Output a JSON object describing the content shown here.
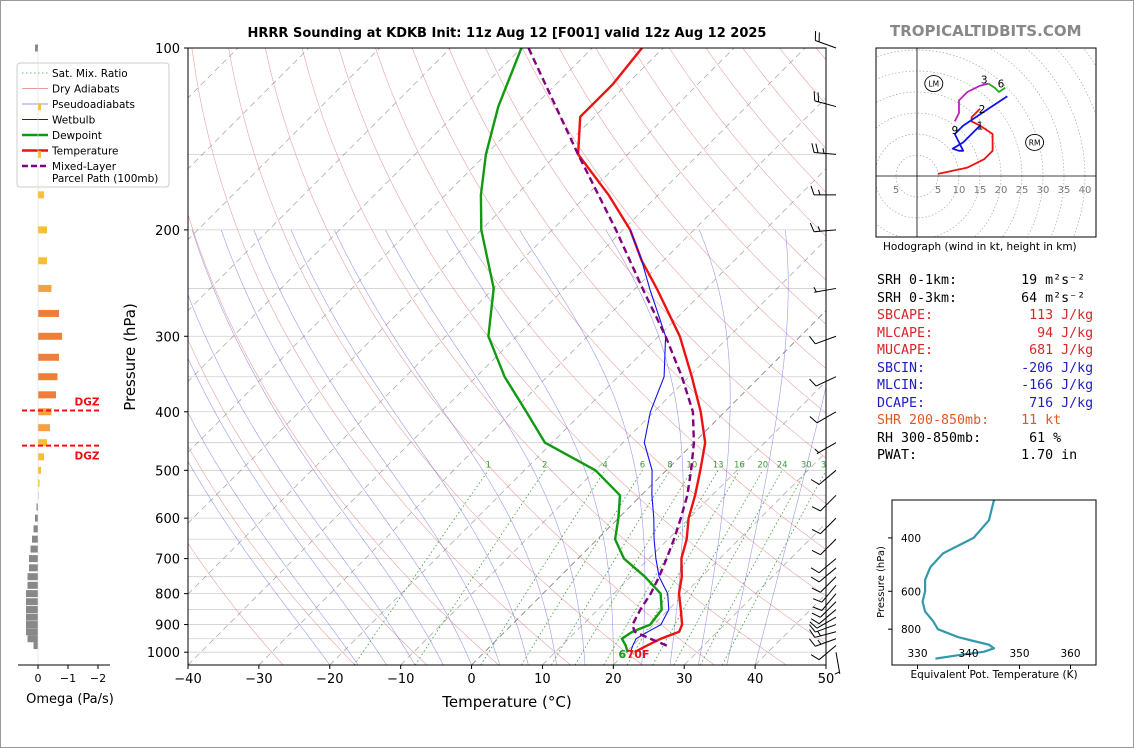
{
  "chart_data": [
    {
      "type": "line",
      "title": "HRRR Sounding at KDKB Init: 11z Aug 12 [F001] valid 12z Aug 12 2025",
      "xlabel": "Temperature (°C)",
      "ylabel": "Pressure (hPa)",
      "xlim": [
        -40,
        50
      ],
      "ylim": [
        1050,
        100
      ],
      "yscale": "log",
      "skew": true,
      "xticks": [
        "−40",
        "−30",
        "−20",
        "−10",
        "0",
        "10",
        "20",
        "30",
        "40",
        "50"
      ],
      "yticks": [
        "100",
        "200",
        "300",
        "400",
        "500",
        "600",
        "700",
        "800",
        "900",
        "1000"
      ],
      "grid": true,
      "mixing_ratio_labels": [
        "1",
        "2",
        "4",
        "6",
        "8",
        "10",
        "13",
        "16",
        "20",
        "24",
        "30",
        "36"
      ],
      "surface_temp_label": "70F",
      "surface_dewpoint_label": "6",
      "legend": {
        "placement": "top-left",
        "entries": [
          "Sat. Mix. Ratio",
          "Dry Adiabats",
          "Pseudoadiabats",
          "Wetbulb",
          "Dewpoint",
          "Temperature",
          "Mixed-Layer\nParcel Path (100mb)"
        ]
      },
      "series": [
        {
          "name": "Temperature",
          "color": "#ee1111",
          "points": [
            [
              1000,
              21.2
            ],
            [
              975,
              22
            ],
            [
              950,
              23
            ],
            [
              925,
              24.6
            ],
            [
              900,
              24
            ],
            [
              850,
              21.7
            ],
            [
              800,
              19.2
            ],
            [
              750,
              17.2
            ],
            [
              700,
              14.6
            ],
            [
              650,
              12.6
            ],
            [
              600,
              9.9
            ],
            [
              550,
              7.6
            ],
            [
              500,
              4.8
            ],
            [
              450,
              1.6
            ],
            [
              400,
              -3.4
            ],
            [
              350,
              -9.6
            ],
            [
              300,
              -17
            ],
            [
              250,
              -27
            ],
            [
              225,
              -33
            ],
            [
              200,
              -39
            ],
            [
              175,
              -47
            ],
            [
              150,
              -57
            ],
            [
              130,
              -62
            ],
            [
              115,
              -62
            ],
            [
              100,
              -63
            ]
          ]
        },
        {
          "name": "Dewpoint",
          "color": "#119911",
          "points": [
            [
              1000,
              20.2
            ],
            [
              975,
              19
            ],
            [
              950,
              17.5
            ],
            [
              925,
              18
            ],
            [
              900,
              19.5
            ],
            [
              850,
              19
            ],
            [
              800,
              16.6
            ],
            [
              750,
              12
            ],
            [
              700,
              6.5
            ],
            [
              650,
              2.5
            ],
            [
              600,
              0
            ],
            [
              550,
              -3
            ],
            [
              500,
              -10
            ],
            [
              450,
              -21
            ],
            [
              400,
              -28
            ],
            [
              350,
              -36
            ],
            [
              300,
              -44
            ],
            [
              250,
              -50
            ],
            [
              200,
              -60
            ],
            [
              175,
              -65
            ],
            [
              150,
              -70
            ],
            [
              125,
              -75
            ],
            [
              100,
              -80
            ]
          ]
        },
        {
          "name": "Wetbulb",
          "color": "#1111ee",
          "points": [
            [
              1000,
              20.6
            ],
            [
              975,
              20
            ],
            [
              950,
              19.5
            ],
            [
              925,
              20.2
            ],
            [
              900,
              21
            ],
            [
              850,
              20
            ],
            [
              800,
              17.6
            ],
            [
              750,
              14
            ],
            [
              700,
              11
            ],
            [
              650,
              8
            ],
            [
              600,
              5
            ],
            [
              550,
              1.5
            ],
            [
              500,
              -2
            ],
            [
              450,
              -7
            ],
            [
              400,
              -10.5
            ],
            [
              350,
              -13.5
            ],
            [
              300,
              -19
            ],
            [
              250,
              -28
            ],
            [
              225,
              -33
            ],
            [
              200,
              -39
            ]
          ]
        },
        {
          "name": "Mixed-Layer\nParcel Path (100mb)",
          "color": "#800080",
          "points": [
            [
              975,
              24.8
            ],
            [
              950,
              21.5
            ],
            [
              925,
              18.3
            ],
            [
              900,
              17
            ],
            [
              850,
              16
            ],
            [
              800,
              15.2
            ],
            [
              750,
              14
            ],
            [
              700,
              12.5
            ],
            [
              650,
              10.8
            ],
            [
              600,
              8.8
            ],
            [
              550,
              6.5
            ],
            [
              500,
              3.5
            ],
            [
              450,
              0
            ],
            [
              400,
              -4.5
            ],
            [
              350,
              -11
            ],
            [
              300,
              -19
            ],
            [
              250,
              -29
            ],
            [
              200,
              -41
            ],
            [
              150,
              -57
            ],
            [
              100,
              -79
            ]
          ]
        }
      ],
      "wind_barbs": [
        {
          "p": 1000,
          "speed_kt": 5,
          "dir_deg": 170
        },
        {
          "p": 975,
          "speed_kt": 10,
          "dir_deg": 230
        },
        {
          "p": 950,
          "speed_kt": 15,
          "dir_deg": 250
        },
        {
          "p": 925,
          "speed_kt": 15,
          "dir_deg": 255
        },
        {
          "p": 900,
          "speed_kt": 10,
          "dir_deg": 250
        },
        {
          "p": 875,
          "speed_kt": 10,
          "dir_deg": 240
        },
        {
          "p": 850,
          "speed_kt": 10,
          "dir_deg": 230
        },
        {
          "p": 825,
          "speed_kt": 10,
          "dir_deg": 225
        },
        {
          "p": 800,
          "speed_kt": 10,
          "dir_deg": 220
        },
        {
          "p": 775,
          "speed_kt": 10,
          "dir_deg": 220
        },
        {
          "p": 750,
          "speed_kt": 10,
          "dir_deg": 225
        },
        {
          "p": 725,
          "speed_kt": 10,
          "dir_deg": 230
        },
        {
          "p": 700,
          "speed_kt": 10,
          "dir_deg": 230
        },
        {
          "p": 650,
          "speed_kt": 10,
          "dir_deg": 225
        },
        {
          "p": 600,
          "speed_kt": 10,
          "dir_deg": 225
        },
        {
          "p": 550,
          "speed_kt": 10,
          "dir_deg": 225
        },
        {
          "p": 500,
          "speed_kt": 10,
          "dir_deg": 230
        },
        {
          "p": 450,
          "speed_kt": 5,
          "dir_deg": 240
        },
        {
          "p": 400,
          "speed_kt": 10,
          "dir_deg": 240
        },
        {
          "p": 350,
          "speed_kt": 10,
          "dir_deg": 245
        },
        {
          "p": 300,
          "speed_kt": 10,
          "dir_deg": 250
        },
        {
          "p": 250,
          "speed_kt": 5,
          "dir_deg": 260
        },
        {
          "p": 200,
          "speed_kt": 15,
          "dir_deg": 265
        },
        {
          "p": 175,
          "speed_kt": 15,
          "dir_deg": 270
        },
        {
          "p": 150,
          "speed_kt": 25,
          "dir_deg": 275
        },
        {
          "p": 125,
          "speed_kt": 20,
          "dir_deg": 285
        },
        {
          "p": 100,
          "speed_kt": 20,
          "dir_deg": 290
        }
      ]
    },
    {
      "type": "bar",
      "name": "omega",
      "xlabel": "Omega (Pa/s)",
      "xticks": [
        "0",
        "−1",
        "−2"
      ],
      "xlim": [
        0.4,
        -2.4
      ],
      "dgz_label": "DGZ",
      "dgz_bounds_hpa": [
        398,
        455
      ],
      "bars": [
        {
          "p": 100,
          "omega": 0.1
        },
        {
          "p": 125,
          "omega": -0.1
        },
        {
          "p": 150,
          "omega": -0.1
        },
        {
          "p": 175,
          "omega": -0.2
        },
        {
          "p": 200,
          "omega": -0.3
        },
        {
          "p": 225,
          "omega": -0.3
        },
        {
          "p": 250,
          "omega": -0.45
        },
        {
          "p": 275,
          "omega": -0.7
        },
        {
          "p": 300,
          "omega": -0.8
        },
        {
          "p": 325,
          "omega": -0.7
        },
        {
          "p": 350,
          "omega": -0.65
        },
        {
          "p": 375,
          "omega": -0.6
        },
        {
          "p": 400,
          "omega": -0.45
        },
        {
          "p": 425,
          "omega": -0.4
        },
        {
          "p": 450,
          "omega": -0.3
        },
        {
          "p": 475,
          "omega": -0.2
        },
        {
          "p": 500,
          "omega": -0.1
        },
        {
          "p": 525,
          "omega": -0.05
        },
        {
          "p": 550,
          "omega": 0
        },
        {
          "p": 575,
          "omega": 0.05
        },
        {
          "p": 600,
          "omega": 0.1
        },
        {
          "p": 625,
          "omega": 0.15
        },
        {
          "p": 650,
          "omega": 0.2
        },
        {
          "p": 675,
          "omega": 0.25
        },
        {
          "p": 700,
          "omega": 0.3
        },
        {
          "p": 725,
          "omega": 0.3
        },
        {
          "p": 750,
          "omega": 0.35
        },
        {
          "p": 775,
          "omega": 0.35
        },
        {
          "p": 800,
          "omega": 0.4
        },
        {
          "p": 825,
          "omega": 0.4
        },
        {
          "p": 850,
          "omega": 0.4
        },
        {
          "p": 875,
          "omega": 0.4
        },
        {
          "p": 900,
          "omega": 0.4
        },
        {
          "p": 925,
          "omega": 0.4
        },
        {
          "p": 950,
          "omega": 0.35
        },
        {
          "p": 975,
          "omega": 0.15
        }
      ]
    },
    {
      "type": "line",
      "name": "hodograph",
      "xlabel": "Hodograph (wind in kt, height in km)",
      "ring_labels": [
        "5",
        "5",
        "10",
        "15",
        "20",
        "25",
        "30",
        "35",
        "40"
      ],
      "height_labels": [
        {
          "label": "1",
          "u": 15,
          "v": 12
        },
        {
          "label": "2",
          "u": 15.5,
          "v": 16
        },
        {
          "label": "3",
          "u": 16,
          "v": 23
        },
        {
          "label": "6",
          "u": 20,
          "v": 22
        },
        {
          "label": "9",
          "u": 9,
          "v": 11
        }
      ],
      "markers": [
        {
          "label": "LM",
          "u": 4,
          "v": 22
        },
        {
          "label": "RM",
          "u": 28,
          "v": 8
        }
      ],
      "segments": [
        {
          "color": "#ee1111",
          "uv": [
            [
              5,
              0.5
            ],
            [
              12,
              2
            ],
            [
              16,
              4
            ],
            [
              18,
              6
            ],
            [
              18,
              10
            ],
            [
              15,
              12
            ],
            [
              13,
              13
            ],
            [
              13,
              14
            ],
            [
              15,
              16
            ]
          ]
        },
        {
          "color": "#1111ee",
          "uv": [
            [
              15,
              12
            ],
            [
              13,
              10
            ],
            [
              11,
              8
            ],
            [
              8.5,
              6.5
            ],
            [
              10,
              6
            ],
            [
              11,
              6
            ],
            [
              10,
              8
            ],
            [
              9,
              10
            ],
            [
              11,
              12
            ],
            [
              17,
              16
            ],
            [
              21.5,
              19
            ]
          ]
        },
        {
          "color": "#bb22bb",
          "uv": [
            [
              9,
              13
            ],
            [
              10,
              15
            ],
            [
              10,
              18
            ],
            [
              12,
              20
            ],
            [
              15,
              21.5
            ],
            [
              17,
              22
            ]
          ]
        },
        {
          "color": "#22aa22",
          "uv": [
            [
              17,
              22
            ],
            [
              18.5,
              21
            ],
            [
              19.5,
              20
            ],
            [
              21,
              21
            ]
          ]
        }
      ]
    },
    {
      "type": "line",
      "name": "theta-e",
      "xlabel": "Equivalent Pot. Temperature (K)",
      "ylabel": "Pressure (hPa)",
      "xlim": [
        325,
        365
      ],
      "ylim": [
        1050,
        300
      ],
      "xticks": [
        "330",
        "340",
        "350",
        "360"
      ],
      "yticks": [
        "400",
        "600",
        "800"
      ],
      "series": [
        {
          "color": "#3399aa",
          "points": [
            [
              1000,
              333.5
            ],
            [
              975,
              338
            ],
            [
              950,
              343
            ],
            [
              925,
              345
            ],
            [
              900,
              344
            ],
            [
              875,
              341
            ],
            [
              850,
              338
            ],
            [
              800,
              334
            ],
            [
              750,
              333
            ],
            [
              700,
              331.5
            ],
            [
              650,
              331
            ],
            [
              600,
              331.5
            ],
            [
              550,
              331.5
            ],
            [
              500,
              332.5
            ],
            [
              450,
              335
            ],
            [
              400,
              341
            ],
            [
              350,
              344
            ],
            [
              300,
              345
            ]
          ]
        }
      ]
    }
  ],
  "brand": "TROPICALTIDBITS.COM",
  "hodograph_caption": "Hodograph (wind in kt, height in km)",
  "stats": [
    {
      "label": "SRH 0-1km:",
      "value": "   19",
      "unit": " m²s⁻²",
      "color": "black"
    },
    {
      "label": "SRH 0-3km:",
      "value": "   64",
      "unit": " m²s⁻²",
      "color": "black"
    },
    {
      "label": "SBCAPE:",
      "value": "    113",
      "unit": " J/kg",
      "color": "red"
    },
    {
      "label": "MLCAPE:",
      "value": "     94",
      "unit": " J/kg",
      "color": "red"
    },
    {
      "label": "MUCAPE:",
      "value": "    681",
      "unit": " J/kg",
      "color": "red"
    },
    {
      "label": "SBCIN:",
      "value": "   -206",
      "unit": " J/kg",
      "color": "blue"
    },
    {
      "label": "MLCIN:",
      "value": "   -166",
      "unit": " J/kg",
      "color": "blue"
    },
    {
      "label": "DCAPE:",
      "value": "    716",
      "unit": " J/kg",
      "color": "blue"
    },
    {
      "label": "SHR 200-850mb:",
      "value": "   11",
      "unit": " kt",
      "color": "orange"
    },
    {
      "label": "RH 300-850mb:",
      "value": "    61",
      "unit": " %",
      "color": "black"
    },
    {
      "label": "PWAT:",
      "value": "   1.70",
      "unit": " in",
      "color": "black"
    }
  ]
}
